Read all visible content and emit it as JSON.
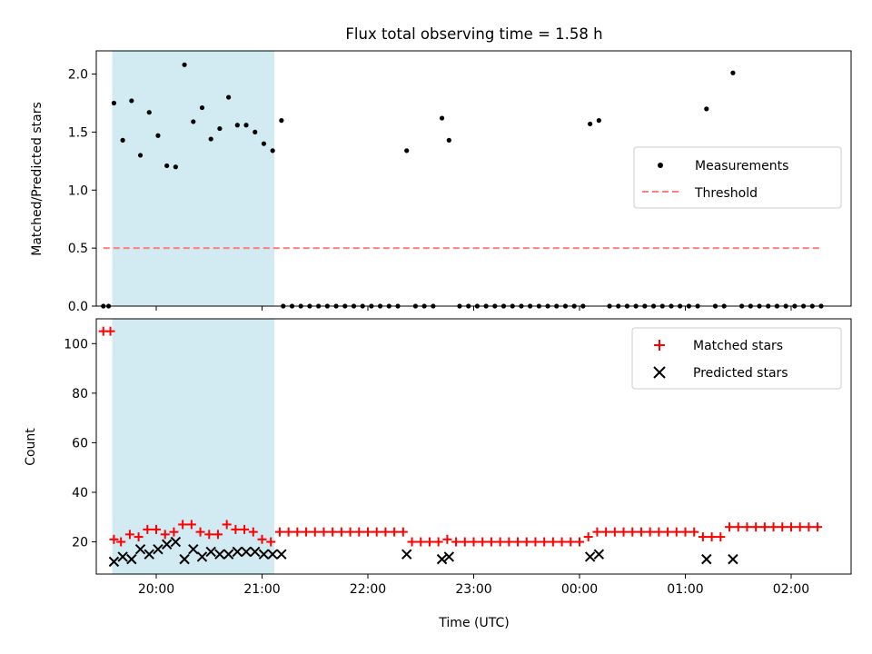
{
  "chart_data": [
    {
      "type": "scatter",
      "title": "Flux total observing time = 1.58 h",
      "ylabel": "Matched/Predicted stars",
      "xlabel": "",
      "xlim": [
        "19:26",
        "02:34"
      ],
      "ylim": [
        0,
        2.2
      ],
      "yticks": [
        "0.0",
        "0.5",
        "1.0",
        "1.5",
        "2.0"
      ],
      "xticks": [
        "20:00",
        "21:00",
        "22:00",
        "23:00",
        "00:00",
        "01:00",
        "02:00"
      ],
      "shaded_span": [
        "19:35",
        "21:07"
      ],
      "shade_color": "#add8e6",
      "legend_position": "center-right",
      "series": [
        {
          "name": "Measurements",
          "kind": "scatter",
          "marker": "dot",
          "color": "#000000",
          "points": [
            [
              "19:30",
              0
            ],
            [
              "19:33",
              0
            ],
            [
              "19:36",
              1.75
            ],
            [
              "19:41",
              1.43
            ],
            [
              "19:46",
              1.77
            ],
            [
              "19:51",
              1.3
            ],
            [
              "19:56",
              1.67
            ],
            [
              "20:01",
              1.47
            ],
            [
              "20:06",
              1.21
            ],
            [
              "20:11",
              1.2
            ],
            [
              "20:16",
              2.08
            ],
            [
              "20:21",
              1.59
            ],
            [
              "20:26",
              1.71
            ],
            [
              "20:31",
              1.44
            ],
            [
              "20:36",
              1.53
            ],
            [
              "20:41",
              1.8
            ],
            [
              "20:46",
              1.56
            ],
            [
              "20:51",
              1.56
            ],
            [
              "20:56",
              1.5
            ],
            [
              "21:01",
              1.4
            ],
            [
              "21:06",
              1.34
            ],
            [
              "21:11",
              1.6
            ],
            [
              "21:12",
              0
            ],
            [
              "21:17",
              0
            ],
            [
              "21:22",
              0
            ],
            [
              "21:27",
              0
            ],
            [
              "21:32",
              0
            ],
            [
              "21:37",
              0
            ],
            [
              "21:42",
              0
            ],
            [
              "21:47",
              0
            ],
            [
              "21:52",
              0
            ],
            [
              "21:57",
              0
            ],
            [
              "22:02",
              0
            ],
            [
              "22:07",
              0
            ],
            [
              "22:12",
              0
            ],
            [
              "22:17",
              0
            ],
            [
              "22:22",
              1.34
            ],
            [
              "22:27",
              0
            ],
            [
              "22:32",
              0
            ],
            [
              "22:37",
              0
            ],
            [
              "22:42",
              1.62
            ],
            [
              "22:46",
              1.43
            ],
            [
              "22:52",
              0
            ],
            [
              "22:57",
              0
            ],
            [
              "23:02",
              0
            ],
            [
              "23:07",
              0
            ],
            [
              "23:12",
              0
            ],
            [
              "23:17",
              0
            ],
            [
              "23:22",
              0
            ],
            [
              "23:27",
              0
            ],
            [
              "23:32",
              0
            ],
            [
              "23:37",
              0
            ],
            [
              "23:42",
              0
            ],
            [
              "23:47",
              0
            ],
            [
              "23:52",
              0
            ],
            [
              "23:57",
              0
            ],
            [
              "00:02",
              0
            ],
            [
              "00:06",
              1.57
            ],
            [
              "00:11",
              1.6
            ],
            [
              "00:17",
              0
            ],
            [
              "00:22",
              0
            ],
            [
              "00:27",
              0
            ],
            [
              "00:32",
              0
            ],
            [
              "00:37",
              0
            ],
            [
              "00:42",
              0
            ],
            [
              "00:47",
              0
            ],
            [
              "00:52",
              0
            ],
            [
              "00:57",
              0
            ],
            [
              "01:02",
              0
            ],
            [
              "01:07",
              0
            ],
            [
              "01:12",
              1.7
            ],
            [
              "01:17",
              0
            ],
            [
              "01:22",
              0
            ],
            [
              "01:27",
              2.01
            ],
            [
              "01:32",
              0
            ],
            [
              "01:37",
              0
            ],
            [
              "01:42",
              0
            ],
            [
              "01:47",
              0
            ],
            [
              "01:52",
              0
            ],
            [
              "01:57",
              0
            ],
            [
              "02:02",
              0
            ],
            [
              "02:07",
              0
            ],
            [
              "02:12",
              0
            ],
            [
              "02:17",
              0
            ]
          ]
        },
        {
          "name": "Threshold",
          "kind": "line",
          "style": "dashed",
          "color": "#ff7f7f",
          "points": [
            [
              "19:30",
              0.5
            ],
            [
              "02:17",
              0.5
            ]
          ]
        }
      ]
    },
    {
      "type": "scatter",
      "title": "",
      "ylabel": "Count",
      "xlabel": "Time (UTC)",
      "xlim": [
        "19:26",
        "02:34"
      ],
      "ylim": [
        7,
        110
      ],
      "yticks": [
        "20",
        "40",
        "60",
        "80",
        "100"
      ],
      "xticks": [
        "20:00",
        "21:00",
        "22:00",
        "23:00",
        "00:00",
        "01:00",
        "02:00"
      ],
      "shaded_span": [
        "19:35",
        "21:07"
      ],
      "shade_color": "#add8e6",
      "legend_position": "top-right",
      "series": [
        {
          "name": "Matched stars",
          "kind": "scatter",
          "marker": "plus",
          "color": "#ff0000",
          "points": [
            [
              "19:30",
              105
            ],
            [
              "19:34",
              105
            ],
            [
              "19:36",
              21
            ],
            [
              "19:40",
              20
            ],
            [
              "19:45",
              23
            ],
            [
              "19:50",
              22
            ],
            [
              "19:55",
              25
            ],
            [
              "20:00",
              25
            ],
            [
              "20:05",
              23
            ],
            [
              "20:10",
              24
            ],
            [
              "20:15",
              27
            ],
            [
              "20:20",
              27
            ],
            [
              "20:25",
              24
            ],
            [
              "20:30",
              23
            ],
            [
              "20:35",
              23
            ],
            [
              "20:40",
              27
            ],
            [
              "20:45",
              25
            ],
            [
              "20:50",
              25
            ],
            [
              "20:55",
              24
            ],
            [
              "21:00",
              21
            ],
            [
              "21:05",
              20
            ],
            [
              "21:10",
              24
            ],
            [
              "21:15",
              24
            ],
            [
              "21:20",
              24
            ],
            [
              "21:25",
              24
            ],
            [
              "21:30",
              24
            ],
            [
              "21:35",
              24
            ],
            [
              "21:40",
              24
            ],
            [
              "21:45",
              24
            ],
            [
              "21:50",
              24
            ],
            [
              "21:55",
              24
            ],
            [
              "22:00",
              24
            ],
            [
              "22:05",
              24
            ],
            [
              "22:10",
              24
            ],
            [
              "22:15",
              24
            ],
            [
              "22:20",
              24
            ],
            [
              "22:25",
              20
            ],
            [
              "22:30",
              20
            ],
            [
              "22:35",
              20
            ],
            [
              "22:40",
              20
            ],
            [
              "22:45",
              21
            ],
            [
              "22:50",
              20
            ],
            [
              "22:55",
              20
            ],
            [
              "23:00",
              20
            ],
            [
              "23:05",
              20
            ],
            [
              "23:10",
              20
            ],
            [
              "23:15",
              20
            ],
            [
              "23:20",
              20
            ],
            [
              "23:25",
              20
            ],
            [
              "23:30",
              20
            ],
            [
              "23:35",
              20
            ],
            [
              "23:40",
              20
            ],
            [
              "23:45",
              20
            ],
            [
              "23:50",
              20
            ],
            [
              "23:55",
              20
            ],
            [
              "00:00",
              20
            ],
            [
              "00:05",
              22
            ],
            [
              "00:10",
              24
            ],
            [
              "00:15",
              24
            ],
            [
              "00:20",
              24
            ],
            [
              "00:25",
              24
            ],
            [
              "00:30",
              24
            ],
            [
              "00:35",
              24
            ],
            [
              "00:40",
              24
            ],
            [
              "00:45",
              24
            ],
            [
              "00:50",
              24
            ],
            [
              "00:55",
              24
            ],
            [
              "01:00",
              24
            ],
            [
              "01:05",
              24
            ],
            [
              "01:10",
              22
            ],
            [
              "01:15",
              22
            ],
            [
              "01:20",
              22
            ],
            [
              "01:25",
              26
            ],
            [
              "01:30",
              26
            ],
            [
              "01:35",
              26
            ],
            [
              "01:40",
              26
            ],
            [
              "01:45",
              26
            ],
            [
              "01:50",
              26
            ],
            [
              "01:55",
              26
            ],
            [
              "02:00",
              26
            ],
            [
              "02:05",
              26
            ],
            [
              "02:10",
              26
            ],
            [
              "02:15",
              26
            ]
          ]
        },
        {
          "name": "Predicted stars",
          "kind": "scatter",
          "marker": "x",
          "color": "#000000",
          "points": [
            [
              "19:36",
              12
            ],
            [
              "19:41",
              14
            ],
            [
              "19:46",
              13
            ],
            [
              "19:51",
              17
            ],
            [
              "19:56",
              15
            ],
            [
              "20:01",
              17
            ],
            [
              "20:06",
              19
            ],
            [
              "20:11",
              20
            ],
            [
              "20:16",
              13
            ],
            [
              "20:21",
              17
            ],
            [
              "20:26",
              14
            ],
            [
              "20:31",
              16
            ],
            [
              "20:36",
              15
            ],
            [
              "20:41",
              15
            ],
            [
              "20:46",
              16
            ],
            [
              "20:51",
              16
            ],
            [
              "20:56",
              16
            ],
            [
              "21:01",
              15
            ],
            [
              "21:06",
              15
            ],
            [
              "21:11",
              15
            ],
            [
              "22:22",
              15
            ],
            [
              "22:42",
              13
            ],
            [
              "22:46",
              14
            ],
            [
              "00:06",
              14
            ],
            [
              "00:11",
              15
            ],
            [
              "01:12",
              13
            ],
            [
              "01:27",
              13
            ]
          ]
        }
      ]
    }
  ]
}
